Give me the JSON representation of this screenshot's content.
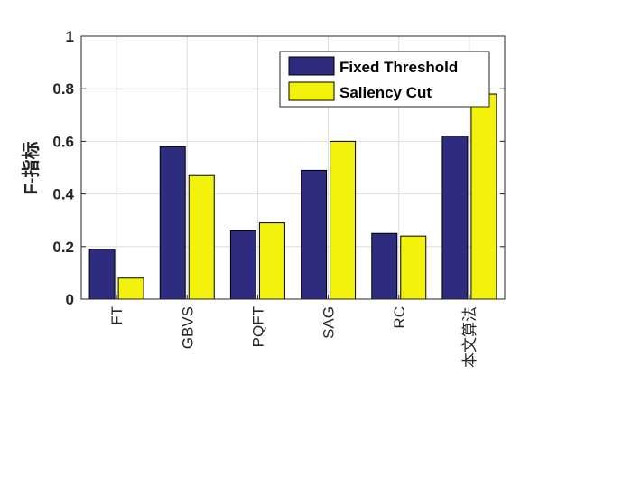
{
  "chart_data": {
    "type": "bar",
    "title": "",
    "xlabel": "",
    "ylabel": "F-指标",
    "categories": [
      "FT",
      "GBVS",
      "PQFT",
      "SAG",
      "RC",
      "本文算法"
    ],
    "series": [
      {
        "name": "Fixed Threshold",
        "values": [
          0.19,
          0.58,
          0.26,
          0.49,
          0.25,
          0.62
        ],
        "color": "#2e2c7e"
      },
      {
        "name": "Saliency Cut",
        "values": [
          0.08,
          0.47,
          0.29,
          0.6,
          0.24,
          0.78
        ],
        "color": "#f2f20c"
      }
    ],
    "ylim": [
      0,
      1
    ],
    "yticks": [
      "0",
      "0.2",
      "0.4",
      "0.6",
      "0.8",
      "1"
    ],
    "grid": true,
    "legend_position": "top-right"
  }
}
